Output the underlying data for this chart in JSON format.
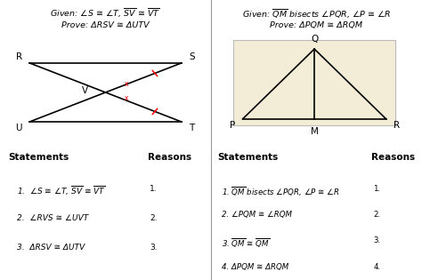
{
  "bg_color": "#ffffff",
  "left": {
    "given_line1": "Given: ∠S ≅ ∠T, ̅S̅V̅ ≅ ̅V̅T̅",
    "given_line2": "Prove: ΔRSV ≅ ΔUTV",
    "R": [
      0.08,
      0.76
    ],
    "S": [
      0.42,
      0.76
    ],
    "U": [
      0.08,
      0.56
    ],
    "T": [
      0.42,
      0.56
    ],
    "statements_title": "Statements",
    "reasons_title": "Reasons",
    "stmt1": "1.  ∠S ≅ ∠T, ̅S̅V̅ ≅ ̅V̅T̅",
    "stmt2": "2.  ∠RVS ≅ ∠UVT",
    "stmt3": "3.  ΔRSV ≅ ΔUTV",
    "r1": "1.",
    "r2": "2.",
    "r3": "3."
  },
  "right": {
    "given_line1": "Given: ̅Q̅M̅ bisects ∠PQR, ∠P ≅ ∠R",
    "given_line2": "Prove: ΔPQM ≅ ΔRQM",
    "Q": [
      0.745,
      0.825
    ],
    "P": [
      0.575,
      0.575
    ],
    "M": [
      0.745,
      0.575
    ],
    "Rpt": [
      0.915,
      0.575
    ],
    "bg": "#f3edd8",
    "statements_title": "Statements",
    "reasons_title": "Reasons",
    "stmt1": "1. ̅Q̅M̅ bisects ∠PQR, ∠P ≅ ∠R",
    "stmt2": "2. ∠PQM ≅ ∠RQM",
    "stmt3": "3. ̅Q̅M̅ ≅ ̅Q̅M̅",
    "stmt4": "4. ΔPQM ≅ ΔRQM",
    "r1": "1.",
    "r2": "2.",
    "r3": "3.",
    "r4": "4."
  }
}
